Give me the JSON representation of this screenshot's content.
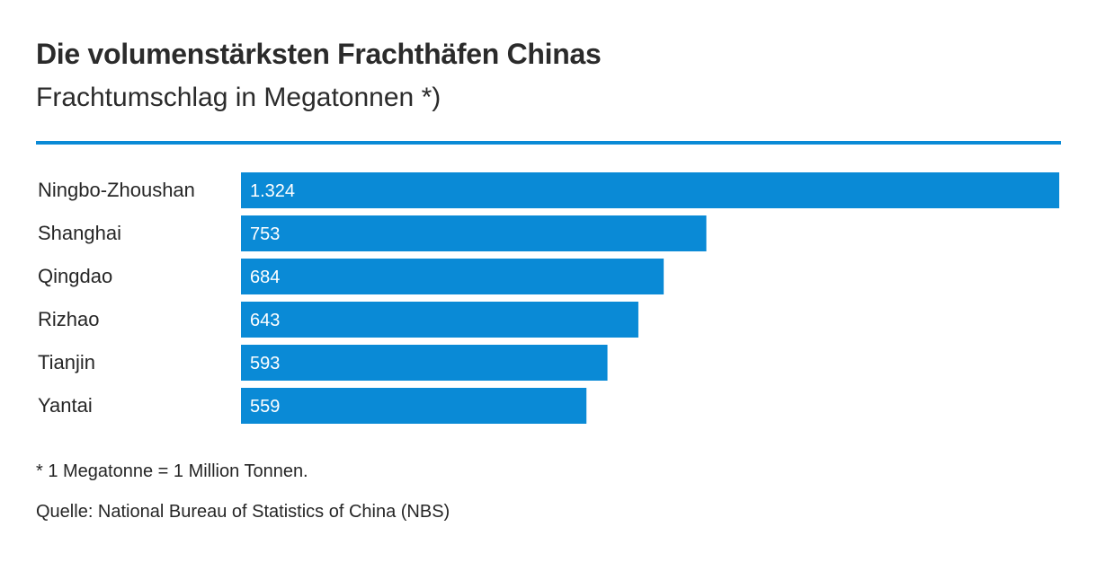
{
  "title": "Die volumenstärksten Frachthäfen Chinas",
  "subtitle": "Frachtumschlag in Megatonnen *)",
  "footnote": "* 1 Megatonne = 1 Million Tonnen.",
  "source": "Quelle: National Bureau of Statistics of China (NBS)",
  "colors": {
    "bar": "#0a8ad6",
    "rule": "#0a8ad6",
    "text": "#262626",
    "bar_label": "#ffffff"
  },
  "chart_data": {
    "type": "bar",
    "orientation": "horizontal",
    "title": "Die volumenstärksten Frachthäfen Chinas",
    "subtitle": "Frachtumschlag in Megatonnen *)",
    "categories": [
      "Ningbo-Zhoushan",
      "Shanghai",
      "Qingdao",
      "Rizhao",
      "Tianjin",
      "Yantai"
    ],
    "values": [
      1324,
      753,
      684,
      643,
      593,
      559
    ],
    "value_labels": [
      "1.324",
      "753",
      "684",
      "643",
      "593",
      "559"
    ],
    "xlim": [
      0,
      1324
    ],
    "grid": false,
    "legend": "none"
  }
}
